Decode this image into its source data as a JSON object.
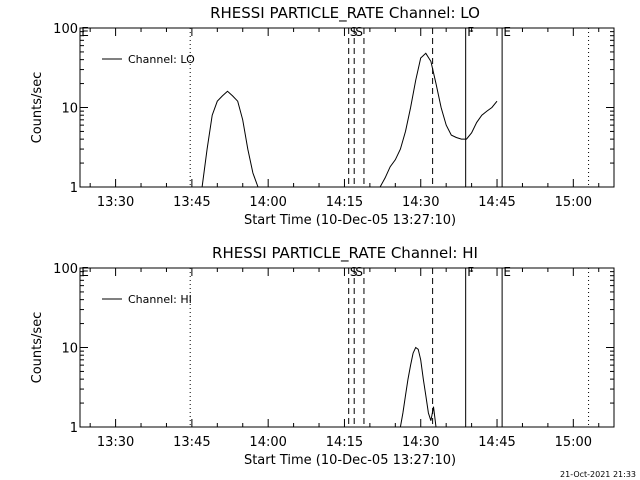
{
  "chart_data": [
    {
      "type": "line",
      "title": "RHESSI PARTICLE_RATE Channel: LO",
      "xlabel": "Start Time (10-Dec-05 13:27:10)",
      "ylabel": "Counts/sec",
      "y_scale": "log",
      "ylim": [
        1,
        100
      ],
      "xlim": [
        "13:23",
        "15:08"
      ],
      "y_ticks": [
        "1",
        "10",
        "100"
      ],
      "x_ticks": [
        "13:30",
        "13:45",
        "14:00",
        "14:15",
        "14:30",
        "14:45",
        "15:00"
      ],
      "legend": "top-left",
      "series": [
        {
          "name": "Channel: LO",
          "x": [
            "13:47:00",
            "13:48:00",
            "13:49:00",
            "13:50:00",
            "13:51:00",
            "13:52:00",
            "13:53:00",
            "13:54:00",
            "13:55:00",
            "13:56:00",
            "13:57:00",
            "13:58:00",
            "14:22:00",
            "14:23:00",
            "14:24:00",
            "14:25:00",
            "14:26:00",
            "14:27:00",
            "14:28:00",
            "14:29:00",
            "14:30:00",
            "14:31:00",
            "14:32:00",
            "14:33:00",
            "14:34:00",
            "14:35:00",
            "14:36:00",
            "14:37:00",
            "14:38:00",
            "14:39:00",
            "14:40:00",
            "14:41:00",
            "14:42:00",
            "14:43:00",
            "14:44:00",
            "14:45:00"
          ],
          "y": [
            1.0,
            3.0,
            8.0,
            12.0,
            14.0,
            16.0,
            14.0,
            12.0,
            7.0,
            3.0,
            1.5,
            1.0,
            1.0,
            1.3,
            1.8,
            2.2,
            3.0,
            5.0,
            10.0,
            22.0,
            42.0,
            48.0,
            38.0,
            20.0,
            10.0,
            6.0,
            4.5,
            4.2,
            4.0,
            4.0,
            4.8,
            6.5,
            8.0,
            9.0,
            10.0,
            12.0
          ]
        }
      ],
      "flags": [
        "E",
        "S",
        "S",
        "F",
        "E"
      ],
      "vlines": [
        {
          "t": "13:44:40",
          "style": "dotted"
        },
        {
          "t": "14:15:50",
          "style": "dashed"
        },
        {
          "t": "14:16:55",
          "style": "dashed"
        },
        {
          "t": "14:18:50",
          "style": "dashed"
        },
        {
          "t": "14:32:20",
          "style": "dashed"
        },
        {
          "t": "14:38:50",
          "style": "solid"
        },
        {
          "t": "14:46:00",
          "style": "solid"
        },
        {
          "t": "15:03:00",
          "style": "dotted"
        }
      ]
    },
    {
      "type": "line",
      "title": "RHESSI PARTICLE_RATE Channel: HI",
      "xlabel": "Start Time (10-Dec-05 13:27:10)",
      "ylabel": "Counts/sec",
      "y_scale": "log",
      "ylim": [
        1,
        100
      ],
      "xlim": [
        "13:23",
        "15:08"
      ],
      "y_ticks": [
        "1",
        "10",
        "100"
      ],
      "x_ticks": [
        "13:30",
        "13:45",
        "14:00",
        "14:15",
        "14:30",
        "14:45",
        "15:00"
      ],
      "legend": "top-left",
      "series": [
        {
          "name": "Channel: HI",
          "x": [
            "14:26:00",
            "14:26:30",
            "14:27:00",
            "14:27:30",
            "14:28:00",
            "14:28:30",
            "14:29:00",
            "14:29:30",
            "14:30:00",
            "14:30:30",
            "14:31:00",
            "14:31:30",
            "14:32:00",
            "14:32:30",
            "14:33:00"
          ],
          "y": [
            1.0,
            1.5,
            2.5,
            4.0,
            6.0,
            8.5,
            10.0,
            9.5,
            7.0,
            4.0,
            2.5,
            1.5,
            1.2,
            1.8,
            1.0
          ]
        }
      ],
      "flags": [
        "E",
        "S",
        "S",
        "F",
        "E"
      ],
      "vlines": [
        {
          "t": "13:44:40",
          "style": "dotted"
        },
        {
          "t": "14:15:50",
          "style": "dashed"
        },
        {
          "t": "14:16:55",
          "style": "dashed"
        },
        {
          "t": "14:18:50",
          "style": "dashed"
        },
        {
          "t": "14:32:20",
          "style": "dashed"
        },
        {
          "t": "14:38:50",
          "style": "solid"
        },
        {
          "t": "14:46:00",
          "style": "solid"
        },
        {
          "t": "15:03:00",
          "style": "dotted"
        }
      ]
    }
  ],
  "footer": {
    "timestamp": "21-Oct-2021 21:33"
  }
}
